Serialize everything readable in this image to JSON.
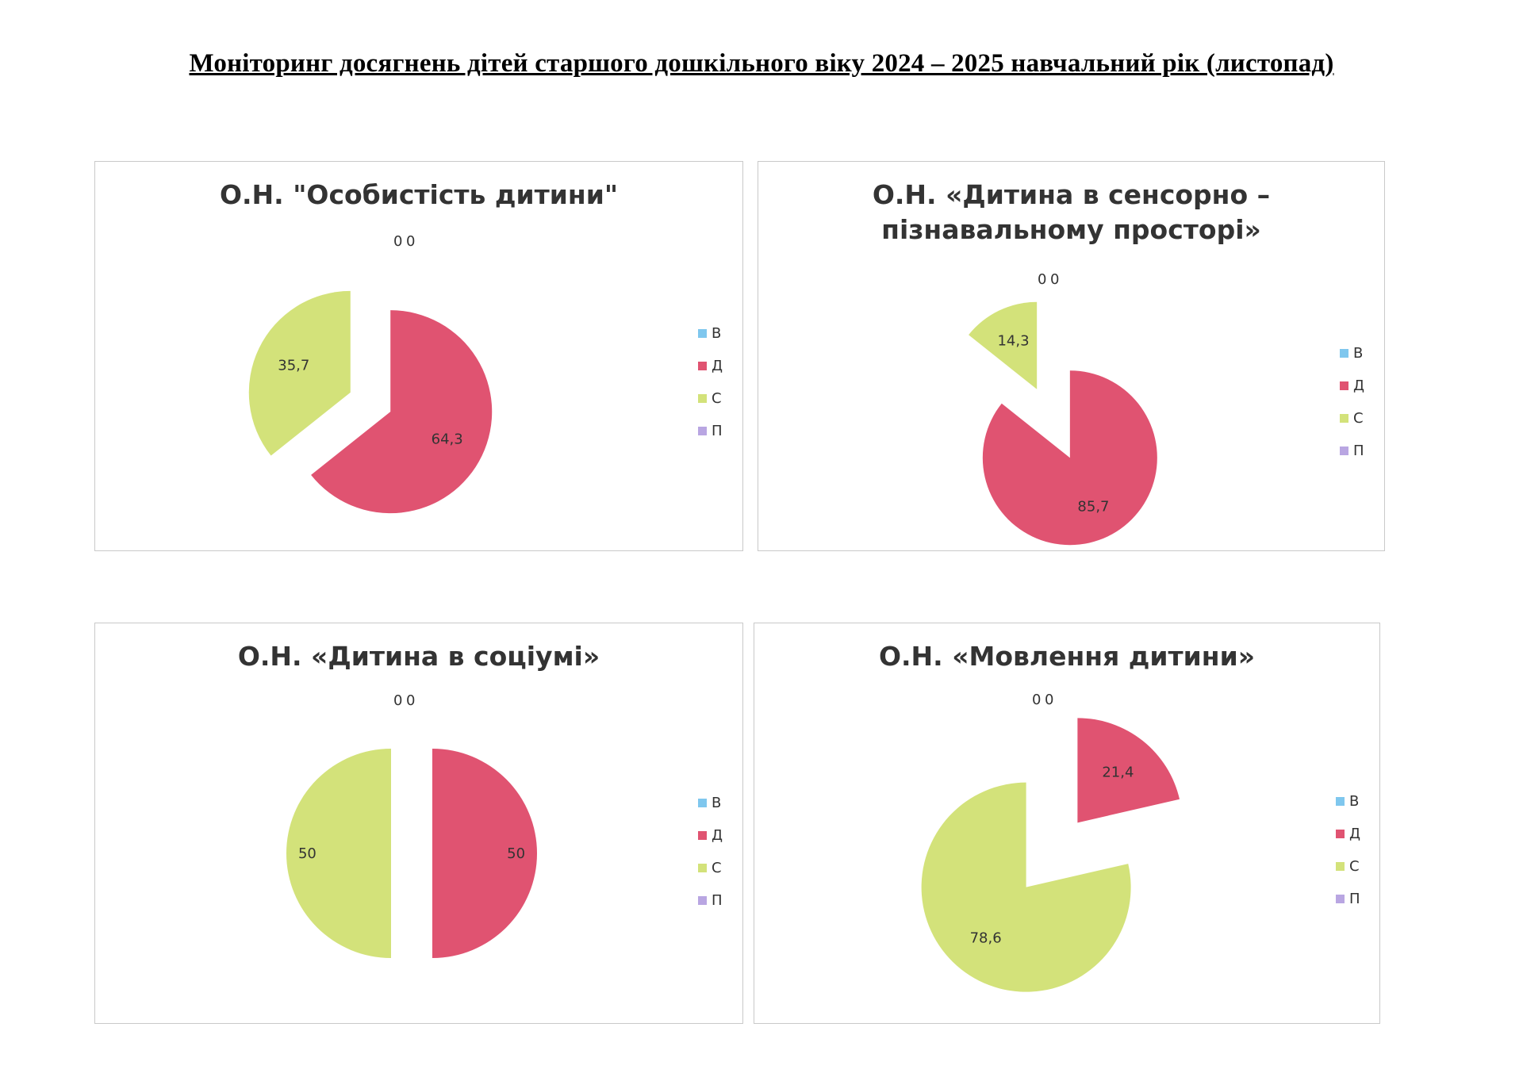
{
  "page_title": "Моніторинг досягнень дітей старшого дошкільного віку 2024 – 2025 навчальний рік (листопад)",
  "colors": {
    "В": "#7fc7ee",
    "Д": "#e05371",
    "С": "#d3e27a",
    "П": "#b9a6e2"
  },
  "chart_data": [
    {
      "type": "pie",
      "title": "О.Н. \"Особистість дитини\"",
      "categories": [
        "В",
        "Д",
        "С",
        "П"
      ],
      "values": [
        0,
        64.3,
        35.7,
        0
      ],
      "value_labels": [
        "0",
        "64,3",
        "35,7",
        "0"
      ],
      "legend": "right"
    },
    {
      "type": "pie",
      "title_lines": [
        "О.Н. «Дитина в сенсорно –",
        "пізнавальному просторі»"
      ],
      "categories": [
        "В",
        "Д",
        "С",
        "П"
      ],
      "values": [
        0,
        85.7,
        14.3,
        0
      ],
      "value_labels": [
        "0",
        "85,7",
        "14,3",
        "0"
      ],
      "legend": "right"
    },
    {
      "type": "pie",
      "title": "О.Н. «Дитина в соціумі»",
      "categories": [
        "В",
        "Д",
        "С",
        "П"
      ],
      "values": [
        0,
        50,
        50,
        0
      ],
      "value_labels": [
        "0",
        "50",
        "50",
        "0"
      ],
      "legend": "right"
    },
    {
      "type": "pie",
      "title": "О.Н. «Мовлення дитини»",
      "categories": [
        "В",
        "Д",
        "С",
        "П"
      ],
      "values": [
        0,
        21.4,
        78.6,
        0
      ],
      "value_labels": [
        "0",
        "21,4",
        "78,6",
        "0"
      ],
      "legend": "right"
    }
  ]
}
